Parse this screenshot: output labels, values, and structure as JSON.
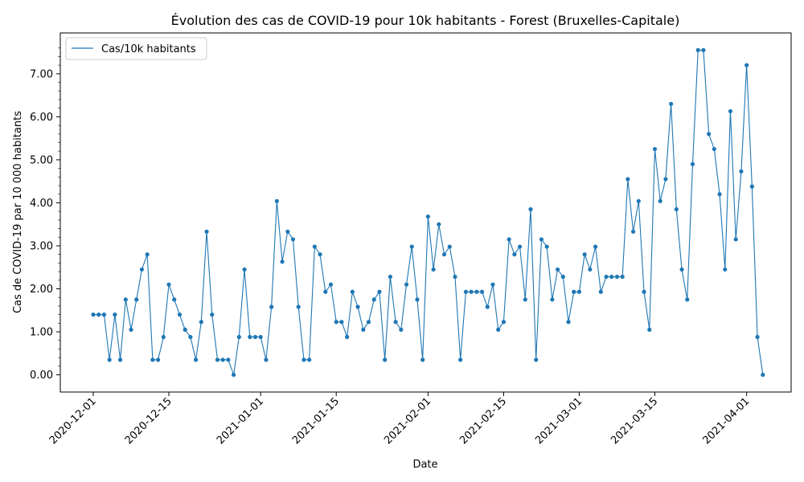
{
  "chart_data": {
    "type": "line",
    "title": "Évolution des cas de COVID-19 pour 10k habitants - Forest (Bruxelles-Capitale)",
    "xlabel": "Date",
    "ylabel": "Cas de COVID-19 par 10 000 habitants",
    "x_start": "2020-12-01",
    "x_tick_labels": [
      "2020-12-01",
      "2020-12-15",
      "2021-01-01",
      "2021-01-15",
      "2021-02-01",
      "2021-02-15",
      "2021-03-01",
      "2021-03-15",
      "2021-04-01"
    ],
    "y_tick_labels": [
      "0.00",
      "1.00",
      "2.00",
      "3.00",
      "4.00",
      "5.00",
      "6.00",
      "7.00"
    ],
    "ylim": [
      -0.4,
      7.95
    ],
    "grid": false,
    "legend_position": "top-left",
    "series": [
      {
        "name": "Cas/10k habitants",
        "color": "#1f77b4",
        "values": [
          1.4,
          1.4,
          1.4,
          0.35,
          1.4,
          0.35,
          1.75,
          1.05,
          1.75,
          2.45,
          2.8,
          0.35,
          0.35,
          0.88,
          2.1,
          1.75,
          1.4,
          1.05,
          0.88,
          0.35,
          1.23,
          3.33,
          1.4,
          0.35,
          0.35,
          0.35,
          0.0,
          0.88,
          2.45,
          0.88,
          0.88,
          0.88,
          0.35,
          1.58,
          4.04,
          2.63,
          3.33,
          3.15,
          1.58,
          0.35,
          0.35,
          2.98,
          2.8,
          1.93,
          2.1,
          1.23,
          1.23,
          0.88,
          1.93,
          1.58,
          1.05,
          1.23,
          1.75,
          1.93,
          0.35,
          2.28,
          1.23,
          1.05,
          2.1,
          2.98,
          1.75,
          0.35,
          3.68,
          2.45,
          3.5,
          2.8,
          2.98,
          2.28,
          0.35,
          1.93,
          1.93,
          1.93,
          1.93,
          1.58,
          2.1,
          1.05,
          1.23,
          3.15,
          2.8,
          2.98,
          1.75,
          3.85,
          0.35,
          3.15,
          2.98,
          1.75,
          2.45,
          2.28,
          1.23,
          1.93,
          1.93,
          2.8,
          2.45,
          2.98,
          1.93,
          2.28,
          2.28,
          2.28,
          2.28,
          4.55,
          3.33,
          4.04,
          1.93,
          1.05,
          5.25,
          4.04,
          4.55,
          6.3,
          3.85,
          2.45,
          1.75,
          4.9,
          7.55,
          7.55,
          5.6,
          5.25,
          4.2,
          2.45,
          6.13,
          3.15,
          4.73,
          7.2,
          4.38,
          0.88,
          0.0
        ]
      }
    ]
  }
}
